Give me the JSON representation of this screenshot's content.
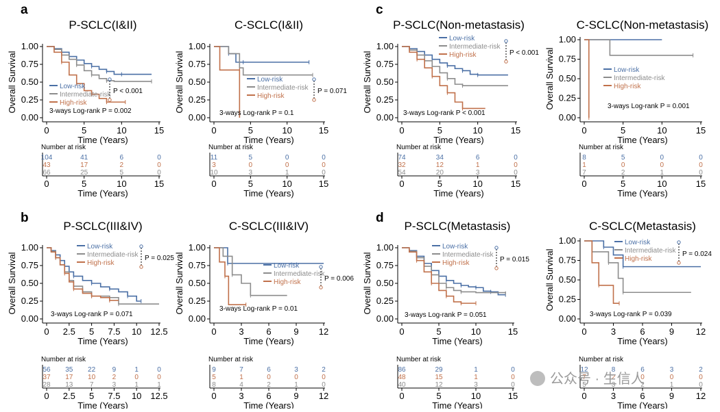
{
  "colors": {
    "low": "#4a6fa5",
    "intermediate": "#8c8c8c",
    "high": "#c0704a",
    "axis": "#000000"
  },
  "panel_labels": [
    "a",
    "b",
    "c",
    "d"
  ],
  "legend": {
    "low": "Low-risk",
    "intermediate": "Intermediate-risk",
    "high": "High-risk"
  },
  "risk_table_title": "Number at risk",
  "watermark": "公众号 · 生信人",
  "chart_data": [
    {
      "type": "line",
      "panel": "a",
      "title": "P-SCLC(I&II)",
      "xlabel": "Time (Years)",
      "ylabel": "Overall Survival",
      "xlim": [
        0,
        15
      ],
      "ylim": [
        0,
        1
      ],
      "xticks": [
        0,
        5,
        10,
        15
      ],
      "yticks": [
        0,
        0.25,
        0.5,
        0.75,
        1.0
      ],
      "ytick_labels": [
        "0.00",
        "0.25",
        "0.50",
        "0.75",
        "1.00"
      ],
      "p_pair": "P < 0.001",
      "p_3way": "3-ways Log-rank P = 0.002",
      "series": [
        {
          "key": "low",
          "x": [
            0,
            1,
            2,
            3,
            4,
            5,
            6,
            7,
            8,
            9,
            10,
            14
          ],
          "y": [
            1.0,
            0.97,
            0.92,
            0.86,
            0.81,
            0.76,
            0.72,
            0.68,
            0.65,
            0.61,
            0.61,
            0.61
          ]
        },
        {
          "key": "intermediate",
          "x": [
            0,
            1,
            2,
            3,
            4,
            5,
            6,
            7,
            8,
            9,
            14
          ],
          "y": [
            1.0,
            0.96,
            0.88,
            0.82,
            0.74,
            0.66,
            0.6,
            0.55,
            0.52,
            0.51,
            0.51
          ]
        },
        {
          "key": "high",
          "x": [
            0,
            1,
            2,
            3,
            4,
            5,
            6,
            7,
            8,
            9,
            10.5
          ],
          "y": [
            1.0,
            0.92,
            0.78,
            0.6,
            0.48,
            0.38,
            0.33,
            0.27,
            0.22,
            0.22,
            0.22
          ]
        }
      ],
      "risk_table": {
        "times": [
          0,
          5,
          10,
          15
        ],
        "rows": [
          {
            "key": "low",
            "values": [
              "104",
              "41",
              "6",
              "0"
            ]
          },
          {
            "key": "high",
            "values": [
              "43",
              "17",
              "2",
              "0"
            ]
          },
          {
            "key": "intermediate",
            "values": [
              "66",
              "25",
              "5",
              "0"
            ]
          }
        ]
      }
    },
    {
      "type": "line",
      "panel": "",
      "title": "C-SCLC(I&II)",
      "xlabel": "Time (Years)",
      "ylabel": "Overall Survival",
      "xlim": [
        0,
        15
      ],
      "ylim": [
        0,
        1
      ],
      "xticks": [
        0,
        5,
        10,
        15
      ],
      "yticks": [
        0,
        0.25,
        0.5,
        0.75,
        1.0
      ],
      "ytick_labels": [
        "0.00",
        "0.25",
        "0.50",
        "0.75",
        "1.00"
      ],
      "p_pair": "P = 0.071",
      "p_3way": "3-ways Log-rank P = 0.1",
      "series": [
        {
          "key": "low",
          "x": [
            0,
            1,
            2,
            3,
            4,
            8,
            13
          ],
          "y": [
            1.0,
            1.0,
            0.9,
            0.78,
            0.78,
            0.78,
            0.78
          ]
        },
        {
          "key": "intermediate",
          "x": [
            0,
            2,
            3.5,
            4,
            13.5
          ],
          "y": [
            1.0,
            0.9,
            0.7,
            0.6,
            0.6
          ]
        },
        {
          "key": "high",
          "x": [
            0,
            0.8,
            3.5,
            3.5
          ],
          "y": [
            1.0,
            0.67,
            0.67,
            0.0
          ]
        }
      ],
      "risk_table": {
        "times": [
          0,
          5,
          10,
          15
        ],
        "rows": [
          {
            "key": "low",
            "values": [
              "11",
              "5",
              "0",
              "0"
            ]
          },
          {
            "key": "high",
            "values": [
              "3",
              "0",
              "0",
              "0"
            ]
          },
          {
            "key": "intermediate",
            "values": [
              "10",
              "3",
              "1",
              "0"
            ]
          }
        ]
      }
    },
    {
      "type": "line",
      "panel": "c",
      "title": "P-SCLC(Non-metastasis)",
      "xlabel": "Time (Years)",
      "ylabel": "Overall Survival",
      "xlim": [
        0,
        15
      ],
      "ylim": [
        0,
        1
      ],
      "xticks": [
        0,
        5,
        10,
        15
      ],
      "yticks": [
        0,
        0.25,
        0.5,
        0.75,
        1.0
      ],
      "ytick_labels": [
        "0.00",
        "0.25",
        "0.50",
        "0.75",
        "1.00"
      ],
      "p_pair": "P < 0.001",
      "p_3way": "3-ways Log-rank P < 0.001",
      "series": [
        {
          "key": "low",
          "x": [
            0,
            1,
            2,
            3,
            4,
            5,
            6,
            7,
            8,
            9,
            10,
            14
          ],
          "y": [
            1.0,
            0.97,
            0.93,
            0.88,
            0.82,
            0.77,
            0.73,
            0.69,
            0.66,
            0.61,
            0.6,
            0.6
          ]
        },
        {
          "key": "intermediate",
          "x": [
            0,
            1,
            2,
            3,
            4,
            5,
            6,
            7,
            8,
            14
          ],
          "y": [
            1.0,
            0.95,
            0.88,
            0.8,
            0.72,
            0.63,
            0.55,
            0.47,
            0.45,
            0.45
          ]
        },
        {
          "key": "high",
          "x": [
            0,
            1,
            2,
            3,
            4,
            5,
            6,
            7,
            8,
            11
          ],
          "y": [
            1.0,
            0.92,
            0.82,
            0.7,
            0.58,
            0.45,
            0.35,
            0.22,
            0.13,
            0.13
          ]
        }
      ],
      "risk_table": {
        "times": [
          0,
          5,
          10,
          15
        ],
        "rows": [
          {
            "key": "low",
            "values": [
              "74",
              "34",
              "6",
              "0"
            ]
          },
          {
            "key": "high",
            "values": [
              "32",
              "12",
              "1",
              "0"
            ]
          },
          {
            "key": "intermediate",
            "values": [
              "54",
              "20",
              "3",
              "0"
            ]
          }
        ]
      }
    },
    {
      "type": "line",
      "panel": "",
      "title": "C-SCLC(Non-metastasis)",
      "xlabel": "Time (Years)",
      "ylabel": "Overall Survival",
      "xlim": [
        0,
        15
      ],
      "ylim": [
        0,
        1
      ],
      "xticks": [
        0,
        5,
        10,
        15
      ],
      "yticks": [
        0,
        0.25,
        0.5,
        0.75,
        1.0
      ],
      "ytick_labels": [
        "0.00",
        "0.25",
        "0.50",
        "0.75",
        "1.00"
      ],
      "p_pair": "",
      "p_3way": "3-ways Log-rank P = 0.001",
      "series": [
        {
          "key": "low",
          "x": [
            0,
            10
          ],
          "y": [
            1.0,
            1.0
          ]
        },
        {
          "key": "intermediate",
          "x": [
            0,
            3.3,
            14
          ],
          "y": [
            1.0,
            0.8,
            0.8
          ]
        },
        {
          "key": "high",
          "x": [
            0,
            0.6,
            0.6
          ],
          "y": [
            1.0,
            1.0,
            0.0
          ]
        }
      ],
      "risk_table": {
        "times": [
          0,
          5,
          10,
          15
        ],
        "rows": [
          {
            "key": "low",
            "values": [
              "8",
              "5",
              "0",
              "0"
            ]
          },
          {
            "key": "high",
            "values": [
              "1",
              "0",
              "0",
              "0"
            ]
          },
          {
            "key": "intermediate",
            "values": [
              "7",
              "2",
              "1",
              "0"
            ]
          }
        ]
      }
    },
    {
      "type": "line",
      "panel": "b",
      "title": "P-SCLC(III&IV)",
      "xlabel": "Time (Years)",
      "ylabel": "Overall Survival",
      "xlim": [
        0,
        12.5
      ],
      "ylim": [
        0,
        1
      ],
      "xticks": [
        0,
        2.5,
        5,
        7.5,
        10,
        12.5
      ],
      "yticks": [
        0,
        0.25,
        0.5,
        0.75,
        1.0
      ],
      "ytick_labels": [
        "0.00",
        "0.25",
        "0.50",
        "0.75",
        "1.00"
      ],
      "p_pair": "P = 0.025",
      "p_3way": "3-ways Log-rank P = 0.071",
      "series": [
        {
          "key": "low",
          "x": [
            0,
            0.5,
            1,
            1.5,
            2,
            2.5,
            3,
            4,
            5,
            6,
            7,
            8,
            9,
            10,
            10.5
          ],
          "y": [
            1.0,
            0.96,
            0.9,
            0.82,
            0.74,
            0.66,
            0.6,
            0.54,
            0.5,
            0.45,
            0.42,
            0.38,
            0.32,
            0.25,
            0.25
          ]
        },
        {
          "key": "intermediate",
          "x": [
            0,
            0.5,
            1,
            1.5,
            2,
            2.5,
            3,
            4,
            5,
            7,
            8,
            12.5
          ],
          "y": [
            1.0,
            0.95,
            0.86,
            0.76,
            0.66,
            0.54,
            0.46,
            0.38,
            0.32,
            0.3,
            0.21,
            0.21
          ]
        },
        {
          "key": "high",
          "x": [
            0,
            0.5,
            1,
            1.5,
            2,
            2.5,
            3,
            4,
            5,
            6,
            7,
            8
          ],
          "y": [
            1.0,
            0.94,
            0.86,
            0.76,
            0.64,
            0.52,
            0.42,
            0.36,
            0.32,
            0.3,
            0.26,
            0.26
          ]
        }
      ],
      "risk_table": {
        "times": [
          0,
          2.5,
          5,
          7.5,
          10,
          12.5
        ],
        "rows": [
          {
            "key": "low",
            "values": [
              "56",
              "35",
              "22",
              "9",
              "1",
              "0"
            ]
          },
          {
            "key": "high",
            "values": [
              "37",
              "17",
              "10",
              "2",
              "0",
              "0"
            ]
          },
          {
            "key": "intermediate",
            "values": [
              "28",
              "13",
              "7",
              "3",
              "1",
              "1"
            ]
          }
        ]
      }
    },
    {
      "type": "line",
      "panel": "",
      "title": "C-SCLC(III&IV)",
      "xlabel": "Time (Years)",
      "ylabel": "Overall Survival",
      "xlim": [
        0,
        12
      ],
      "ylim": [
        0,
        1
      ],
      "xticks": [
        0,
        3,
        6,
        9,
        12
      ],
      "yticks": [
        0,
        0.25,
        0.5,
        0.75,
        1.0
      ],
      "ytick_labels": [
        "0.00",
        "0.25",
        "0.50",
        "0.75",
        "1.00"
      ],
      "p_pair": "P = 0.006",
      "p_3way": "3-ways Log-rank P = 0.01",
      "series": [
        {
          "key": "low",
          "x": [
            0,
            1,
            1.5,
            12
          ],
          "y": [
            1.0,
            1.0,
            0.78,
            0.78
          ]
        },
        {
          "key": "intermediate",
          "x": [
            0,
            1,
            2,
            3,
            4,
            8
          ],
          "y": [
            1.0,
            0.88,
            0.62,
            0.5,
            0.33,
            0.33
          ]
        },
        {
          "key": "high",
          "x": [
            0,
            0.6,
            1.2,
            1.6,
            3.5
          ],
          "y": [
            1.0,
            0.8,
            0.6,
            0.2,
            0.2
          ]
        }
      ],
      "risk_table": {
        "times": [
          0,
          3,
          6,
          9,
          12
        ],
        "rows": [
          {
            "key": "low",
            "values": [
              "9",
              "7",
              "6",
              "3",
              "2"
            ]
          },
          {
            "key": "high",
            "values": [
              "5",
              "1",
              "0",
              "0",
              "0"
            ]
          },
          {
            "key": "intermediate",
            "values": [
              "8",
              "4",
              "2",
              "1",
              "0"
            ]
          }
        ]
      }
    },
    {
      "type": "line",
      "panel": "d",
      "title": "P-SCLC(Metastasis)",
      "xlabel": "Time (Years)",
      "ylabel": "Overall Survival",
      "xlim": [
        0,
        15
      ],
      "ylim": [
        0,
        1
      ],
      "xticks": [
        0,
        5,
        10,
        15
      ],
      "yticks": [
        0,
        0.25,
        0.5,
        0.75,
        1.0
      ],
      "ytick_labels": [
        "0.00",
        "0.25",
        "0.50",
        "0.75",
        "1.00"
      ],
      "p_pair": "P = 0.015",
      "p_3way": "3-ways Log-rank P = 0.051",
      "series": [
        {
          "key": "low",
          "x": [
            0,
            1,
            2,
            3,
            4,
            5,
            6,
            7,
            8,
            9,
            10,
            11,
            12,
            13,
            14
          ],
          "y": [
            1.0,
            0.96,
            0.88,
            0.78,
            0.68,
            0.6,
            0.54,
            0.5,
            0.47,
            0.45,
            0.44,
            0.39,
            0.38,
            0.34,
            0.34
          ]
        },
        {
          "key": "intermediate",
          "x": [
            0,
            1,
            2,
            3,
            4,
            5,
            6,
            7,
            8,
            10,
            14
          ],
          "y": [
            1.0,
            0.95,
            0.86,
            0.74,
            0.62,
            0.5,
            0.44,
            0.4,
            0.38,
            0.37,
            0.36
          ]
        },
        {
          "key": "high",
          "x": [
            0,
            1,
            2,
            3,
            4,
            5,
            6,
            7,
            8,
            9,
            10
          ],
          "y": [
            1.0,
            0.94,
            0.82,
            0.66,
            0.5,
            0.4,
            0.32,
            0.24,
            0.22,
            0.22,
            0.22
          ]
        }
      ],
      "risk_table": {
        "times": [
          0,
          5,
          10,
          15
        ],
        "rows": [
          {
            "key": "low",
            "values": [
              "86",
              "29",
              "1",
              "0"
            ]
          },
          {
            "key": "high",
            "values": [
              "48",
              "15",
              "1",
              "0"
            ]
          },
          {
            "key": "intermediate",
            "values": [
              "40",
              "12",
              "3",
              "0"
            ]
          }
        ]
      }
    },
    {
      "type": "line",
      "panel": "",
      "title": "C-SCLC(Metastasis)",
      "xlabel": "Time (Years)",
      "ylabel": "Overall Survival",
      "xlim": [
        0,
        12
      ],
      "ylim": [
        0,
        1
      ],
      "xticks": [
        0,
        3,
        6,
        9,
        12
      ],
      "yticks": [
        0,
        0.25,
        0.5,
        0.75,
        1.0
      ],
      "ytick_labels": [
        "0.00",
        "0.25",
        "0.50",
        "0.75",
        "1.00"
      ],
      "p_pair": "P = 0.024",
      "p_3way": "3-ways Log-rank P = 0.039",
      "series": [
        {
          "key": "low",
          "x": [
            0,
            1.5,
            2,
            3,
            4,
            12
          ],
          "y": [
            1.0,
            1.0,
            0.92,
            0.82,
            0.67,
            0.67
          ]
        },
        {
          "key": "intermediate",
          "x": [
            0,
            0.8,
            2.5,
            3.5,
            4,
            11
          ],
          "y": [
            1.0,
            0.86,
            0.72,
            0.52,
            0.34,
            0.34
          ]
        },
        {
          "key": "high",
          "x": [
            0,
            0.8,
            1.5,
            3,
            3.6
          ],
          "y": [
            1.0,
            0.72,
            0.43,
            0.2,
            0.2
          ]
        }
      ],
      "risk_table": {
        "times": [
          0,
          3,
          6,
          9,
          12
        ],
        "rows": [
          {
            "key": "low",
            "values": [
              "12",
              "8",
              "6",
              "3",
              "2"
            ]
          },
          {
            "key": "high",
            "values": [
              "7",
              "2",
              "0",
              "0",
              "0"
            ]
          },
          {
            "key": "intermediate",
            "values": [
              "5",
              "3",
              "2",
              "1",
              "0"
            ]
          }
        ]
      }
    }
  ]
}
